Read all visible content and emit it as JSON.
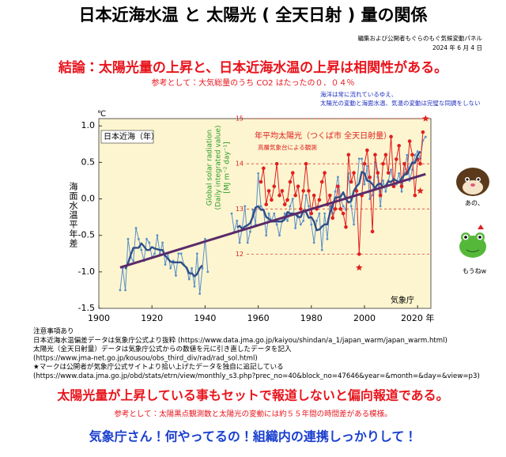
{
  "header": {
    "title": "日本近海水温 と 太陽光 ( 全天日射 ) 量の関係",
    "publisher": "編集および公開者もぐらのもぐ気候変動パネル",
    "date": "2024 年 6 月 4 日",
    "conclusion": "結論：太陽光量の上昇と、日本近海水温の上昇は相関性がある。",
    "reference": "参考として：大気総量のうち CO2 はたったの０．０４％",
    "ocean_note": [
      "海洋は常に流れているゆえ、",
      "太陽光の変動と海面水温、気温の変動は完璧な同調をしない"
    ]
  },
  "chart_data": {
    "type": "line",
    "y_unit": "℃",
    "y_label": "海面水温平年差",
    "panel_label": "日本近海（年）",
    "source": "気象庁",
    "y2_label": [
      "Global solar radiation",
      "(Daily integrated value)",
      "[MJ m⁻² day⁻¹]"
    ],
    "y2_title": "年平均太陽光（つくば市 全天日射量）",
    "y2_subtitle": "高層気象台による観測",
    "xlim": [
      1900,
      2025
    ],
    "xticks": [
      1900,
      1920,
      1940,
      1960,
      1980,
      2000,
      {
        "value": 2020,
        "label": "2020 年"
      }
    ],
    "ylim": [
      -1.5,
      1.1
    ],
    "yticks": [
      {
        "value": -1.5,
        "label": "-1.5"
      },
      {
        "value": -1.0,
        "label": "-1.0"
      },
      {
        "value": -0.5,
        "label": "-0.5"
      },
      {
        "value": 0.0,
        "label": "0.0"
      },
      {
        "value": 0.5,
        "label": "0.5"
      },
      {
        "value": 1.0,
        "label": "1.0"
      }
    ],
    "y2lim": [
      10.8,
      15
    ],
    "y2ticks": [
      12,
      13,
      14,
      15
    ],
    "background": "#fcf5cf",
    "series": [
      {
        "style": "dots",
        "color": "#5b8fc7",
        "x": [
          1908,
          1909,
          1910,
          1911,
          1912,
          1913,
          1914,
          1915,
          1916,
          1917,
          1918,
          1919,
          1920,
          1921,
          1922,
          1923,
          1924,
          1925,
          1926,
          1927,
          1928,
          1929,
          1930,
          1931,
          1932,
          1933,
          1934,
          1935,
          1936,
          1937,
          1938,
          1939,
          1940,
          1941,
          1942,
          1943,
          1944,
          1945,
          1946,
          1947,
          1948,
          1949,
          1950,
          1951,
          1952,
          1953,
          1954,
          1955,
          1956,
          1957,
          1958,
          1959,
          1960,
          1961,
          1962,
          1963,
          1964,
          1965,
          1966,
          1967,
          1968,
          1969,
          1970,
          1971,
          1972,
          1973,
          1974,
          1975,
          1976,
          1977,
          1978,
          1979,
          1980,
          1981,
          1982,
          1983,
          1984,
          1985,
          1986,
          1987,
          1988,
          1989,
          1990,
          1991,
          1992,
          1993,
          1994,
          1995,
          1996,
          1997,
          1998,
          1999,
          2000,
          2001,
          2002,
          2003,
          2004,
          2005,
          2006,
          2007,
          2008,
          2009,
          2010,
          2011,
          2012,
          2013,
          2014,
          2015,
          2016,
          2017,
          2018,
          2019,
          2020,
          2021,
          2022,
          2023
        ],
        "values": [
          -1.25,
          -0.95,
          -1.25,
          -0.55,
          -0.8,
          -0.85,
          -0.4,
          -0.55,
          -0.7,
          -0.85,
          -0.55,
          -0.6,
          -0.8,
          -0.75,
          -0.5,
          -0.75,
          -0.6,
          -0.9,
          -0.75,
          -0.95,
          -0.85,
          -1.05,
          -0.75,
          -0.75,
          -0.9,
          -0.95,
          -1.1,
          -0.95,
          -1.2,
          -0.75,
          -1.3,
          -0.95,
          -0.55,
          -1.0,
          null,
          null,
          null,
          null,
          null,
          null,
          null,
          null,
          -0.2,
          -0.45,
          -0.3,
          -0.6,
          -0.4,
          -0.1,
          -0.6,
          -0.45,
          -0.15,
          -0.35,
          0.35,
          -0.1,
          -0.15,
          -0.5,
          -0.2,
          -0.3,
          -0.2,
          -0.35,
          -0.5,
          -0.3,
          -0.2,
          -0.3,
          -0.1,
          0.0,
          -0.4,
          -0.2,
          -0.35,
          -0.3,
          0.05,
          -0.1,
          -0.35,
          -0.6,
          -0.3,
          -0.2,
          -0.7,
          -0.2,
          -0.55,
          -0.1,
          -0.2,
          0.1,
          0.3,
          0.0,
          -0.1,
          -0.15,
          0.35,
          -0.1,
          -0.35,
          0.1,
          0.55,
          0.55,
          0.2,
          0.45,
          0.0,
          0.05,
          0.5,
          0.3,
          -0.1,
          0.25,
          0.1,
          0.25,
          0.4,
          0.2,
          0.2,
          0.35,
          0.1,
          0.35,
          0.6,
          0.25,
          0.4,
          0.6,
          0.65,
          0.55,
          0.8,
          0.85
        ]
      },
      {
        "style": "thick",
        "color": "#2f4f8a",
        "x": [
          1908,
          1909,
          1910,
          1911,
          1912,
          1913,
          1914,
          1915,
          1916,
          1917,
          1918,
          1919,
          1920,
          1921,
          1922,
          1923,
          1924,
          1925,
          1926,
          1927,
          1928,
          1929,
          1930,
          1931,
          1932,
          1933,
          1934,
          1935,
          1936,
          1937,
          1938,
          1939,
          1940,
          1941,
          1942,
          1943,
          1944,
          1945,
          1946,
          1947,
          1948,
          1949,
          1950,
          1951,
          1952,
          1953,
          1954,
          1955,
          1956,
          1957,
          1958,
          1959,
          1960,
          1961,
          1962,
          1963,
          1964,
          1965,
          1966,
          1967,
          1968,
          1969,
          1970,
          1971,
          1972,
          1973,
          1974,
          1975,
          1976,
          1977,
          1978,
          1979,
          1980,
          1981,
          1982,
          1983,
          1984,
          1985,
          1986,
          1987,
          1988,
          1989,
          1990,
          1991,
          1992,
          1993,
          1994,
          1995,
          1996,
          1997,
          1998,
          1999,
          2000,
          2001,
          2002,
          2003,
          2004,
          2005,
          2006,
          2007,
          2008,
          2009,
          2010,
          2011,
          2012,
          2013,
          2014,
          2015,
          2016,
          2017,
          2018,
          2019,
          2020,
          2021,
          2022,
          2023
        ],
        "values": [
          null,
          null,
          -0.96,
          -0.88,
          -0.77,
          -0.67,
          -0.67,
          -0.67,
          -0.61,
          -0.65,
          -0.7,
          -0.7,
          -0.66,
          -0.68,
          -0.69,
          -0.7,
          -0.7,
          -0.78,
          -0.82,
          -0.86,
          -0.87,
          -0.87,
          -0.87,
          -0.87,
          -0.91,
          -0.94,
          -1.02,
          -1.02,
          -1.06,
          -1.03,
          -0.95,
          -0.91,
          null,
          null,
          null,
          null,
          null,
          null,
          null,
          null,
          null,
          null,
          null,
          null,
          -0.39,
          -0.37,
          -0.41,
          -0.38,
          -0.36,
          -0.33,
          -0.24,
          -0.12,
          -0.1,
          -0.15,
          -0.15,
          -0.25,
          -0.27,
          -0.31,
          -0.31,
          -0.31,
          -0.31,
          -0.31,
          -0.28,
          -0.18,
          -0.2,
          -0.2,
          -0.21,
          -0.25,
          -0.25,
          -0.16,
          -0.18,
          -0.26,
          -0.25,
          -0.31,
          -0.43,
          -0.42,
          -0.38,
          -0.35,
          -0.35,
          -0.19,
          -0.09,
          0.02,
          0.02,
          0.03,
          0.09,
          0.0,
          -0.05,
          -0.03,
          0.11,
          0.17,
          0.21,
          0.37,
          0.35,
          0.25,
          0.24,
          0.2,
          0.15,
          0.2,
          0.21,
          0.16,
          0.18,
          0.24,
          0.23,
          0.27,
          0.25,
          0.23,
          0.28,
          0.33,
          0.34,
          0.42,
          0.5,
          0.49,
          0.6,
          0.65,
          null,
          null
        ]
      },
      {
        "style": "trend",
        "color": "#5a2a6a",
        "x": [
          1908,
          2023
        ],
        "values": [
          -0.94,
          0.34
        ]
      },
      {
        "style": "circles",
        "color": "#e02020",
        "axis": "y2",
        "x": [
          1961,
          1962,
          1963,
          1964,
          1965,
          1966,
          1967,
          1968,
          1969,
          1970,
          1971,
          1972,
          1973,
          1974,
          1975,
          1976,
          1977,
          1978,
          1979,
          1980,
          1981,
          1982,
          1983,
          1984,
          1985,
          1986,
          1987,
          1988,
          1989,
          1990,
          1991,
          1992,
          1993,
          1994,
          1995,
          1996,
          1997,
          1998,
          1999,
          2000,
          2001,
          2002,
          2003,
          2004,
          2005,
          2006,
          2007,
          2008,
          2009,
          2010,
          2011,
          2012,
          2013,
          2014,
          2015,
          2016,
          2017,
          2018,
          2019,
          2020,
          2021,
          2022
        ],
        "values": [
          13.6,
          13.9,
          13.1,
          13.4,
          13.2,
          13.5,
          14.0,
          13.3,
          13.4,
          13.1,
          13.2,
          13.6,
          13.8,
          13.3,
          13.5,
          13.0,
          13.4,
          14.0,
          13.4,
          12.9,
          13.3,
          13.0,
          13.2,
          13.6,
          13.8,
          13.1,
          13.3,
          12.8,
          13.0,
          13.5,
          13.0,
          12.9,
          12.6,
          14.2,
          13.6,
          13.8,
          13.4,
          12.0,
          13.3,
          14.0,
          14.3,
          13.7,
          12.5,
          14.2,
          13.8,
          13.3,
          14.0,
          14.2,
          13.8,
          14.6,
          13.5,
          14.1,
          14.4,
          13.5,
          14.0,
          13.8,
          14.5,
          14.2,
          13.3,
          14.1,
          14.0,
          14.7
        ]
      },
      {
        "style": "stars",
        "color": "#e02020",
        "axis": "y2",
        "x": [
          1998,
          2021,
          2023
        ],
        "values": [
          11.7,
          13.4,
          15.0
        ]
      }
    ]
  },
  "characters": [
    {
      "kind": "mole",
      "caption": "あの、"
    },
    {
      "kind": "frog",
      "caption": "もうねw"
    }
  ],
  "notes": [
    "注意事項あり",
    "日本近海水温偏差データは気象庁公式より抜粋 (https://www.data.jma.go.jp/kaiyou/shindan/a_1/japan_warm/japan_warm.html)",
    "太陽光（全天日射量）データは気象庁公式からの数値を元に引き直したデータを記入",
    "(https://www.jma-net.go.jp/kousou/obs_third_div/rad/rad_sol.html)",
    "★マークは公開者が気象庁公式サイトより拾い上げたデータを独自に追記している",
    "(https://www.data.jma.go.jp/obd/stats/etrn/view/monthly_s3.php?prec_no=40&block_no=47646&year=&month=&day=&view=p3)"
  ],
  "footer": {
    "statement": "太陽光量が上昇している事もセットで報道しないと偏向報道である。",
    "reference": "参考として：太陽黒点観測数と太陽光の変動には約５５年間の時間差がある模様。",
    "appeal": "気象庁さん！何やってるの！組織内の連携しっかりして！"
  }
}
